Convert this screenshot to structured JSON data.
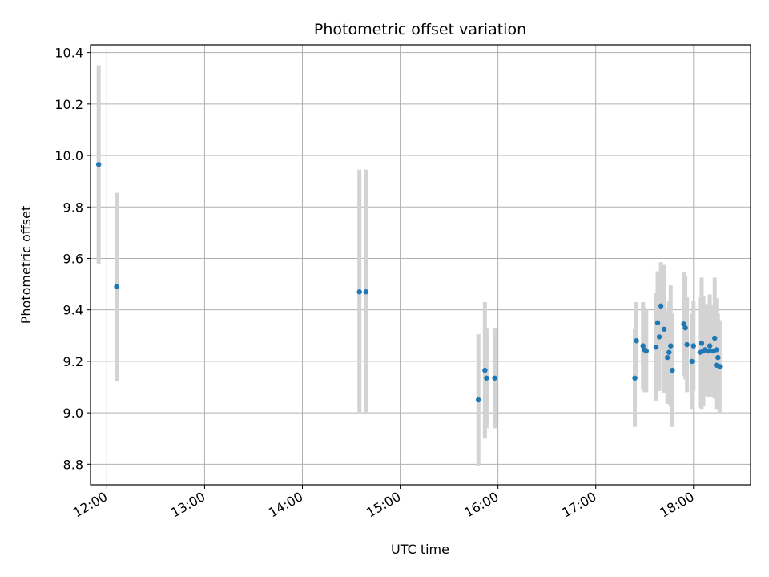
{
  "chart_data": {
    "type": "scatter",
    "title": "Photometric offset variation",
    "xlabel": "UTC time",
    "ylabel": "Photometric offset",
    "x_unit": "UTC time (HH:MM)",
    "xlim": [
      "11:50",
      "18:35"
    ],
    "ylim": [
      8.72,
      10.43
    ],
    "x_ticks": [
      "12:00",
      "13:00",
      "14:00",
      "15:00",
      "16:00",
      "17:00",
      "18:00"
    ],
    "y_ticks": [
      "8.8",
      "9.0",
      "9.2",
      "9.4",
      "9.6",
      "9.8",
      "10.0",
      "10.2",
      "10.4"
    ],
    "grid": true,
    "point_color": "#1f77b4",
    "errorbar_color": "#d3d3d3",
    "points": [
      {
        "x": "11:55",
        "y": 9.965,
        "err": 0.385
      },
      {
        "x": "12:06",
        "y": 9.49,
        "err": 0.365
      },
      {
        "x": "14:35",
        "y": 9.47,
        "err": 0.475
      },
      {
        "x": "14:39",
        "y": 9.47,
        "err": 0.475
      },
      {
        "x": "15:48",
        "y": 9.05,
        "err": 0.255
      },
      {
        "x": "15:52",
        "y": 9.165,
        "err": 0.265
      },
      {
        "x": "15:53",
        "y": 9.135,
        "err": 0.195
      },
      {
        "x": "15:58",
        "y": 9.135,
        "err": 0.195
      },
      {
        "x": "17:24",
        "y": 9.135,
        "err": 0.19
      },
      {
        "x": "17:25",
        "y": 9.28,
        "err": 0.15
      },
      {
        "x": "17:29",
        "y": 9.26,
        "err": 0.17
      },
      {
        "x": "17:30",
        "y": 9.245,
        "err": 0.165
      },
      {
        "x": "17:31",
        "y": 9.24,
        "err": 0.16
      },
      {
        "x": "17:37",
        "y": 9.255,
        "err": 0.21
      },
      {
        "x": "17:38",
        "y": 9.35,
        "err": 0.2
      },
      {
        "x": "17:39",
        "y": 9.295,
        "err": 0.21
      },
      {
        "x": "17:40",
        "y": 9.415,
        "err": 0.17
      },
      {
        "x": "17:42",
        "y": 9.325,
        "err": 0.25
      },
      {
        "x": "17:44",
        "y": 9.215,
        "err": 0.18
      },
      {
        "x": "17:45",
        "y": 9.235,
        "err": 0.2
      },
      {
        "x": "17:46",
        "y": 9.26,
        "err": 0.235
      },
      {
        "x": "17:47",
        "y": 9.165,
        "err": 0.22
      },
      {
        "x": "17:54",
        "y": 9.345,
        "err": 0.2
      },
      {
        "x": "17:55",
        "y": 9.33,
        "err": 0.2
      },
      {
        "x": "17:56",
        "y": 9.265,
        "err": 0.185
      },
      {
        "x": "17:59",
        "y": 9.2,
        "err": 0.185
      },
      {
        "x": "18:00",
        "y": 9.26,
        "err": 0.175
      },
      {
        "x": "18:04",
        "y": 9.235,
        "err": 0.215
      },
      {
        "x": "18:05",
        "y": 9.27,
        "err": 0.255
      },
      {
        "x": "18:06",
        "y": 9.24,
        "err": 0.215
      },
      {
        "x": "18:07",
        "y": 9.245,
        "err": 0.18
      },
      {
        "x": "18:09",
        "y": 9.24,
        "err": 0.18
      },
      {
        "x": "18:10",
        "y": 9.26,
        "err": 0.2
      },
      {
        "x": "18:12",
        "y": 9.24,
        "err": 0.18
      },
      {
        "x": "18:13",
        "y": 9.29,
        "err": 0.235
      },
      {
        "x": "18:14",
        "y": 9.245,
        "err": 0.2
      },
      {
        "x": "18:14",
        "y": 9.185,
        "err": 0.17
      },
      {
        "x": "18:15",
        "y": 9.215,
        "err": 0.17
      },
      {
        "x": "18:16",
        "y": 9.18,
        "err": 0.18
      }
    ]
  }
}
